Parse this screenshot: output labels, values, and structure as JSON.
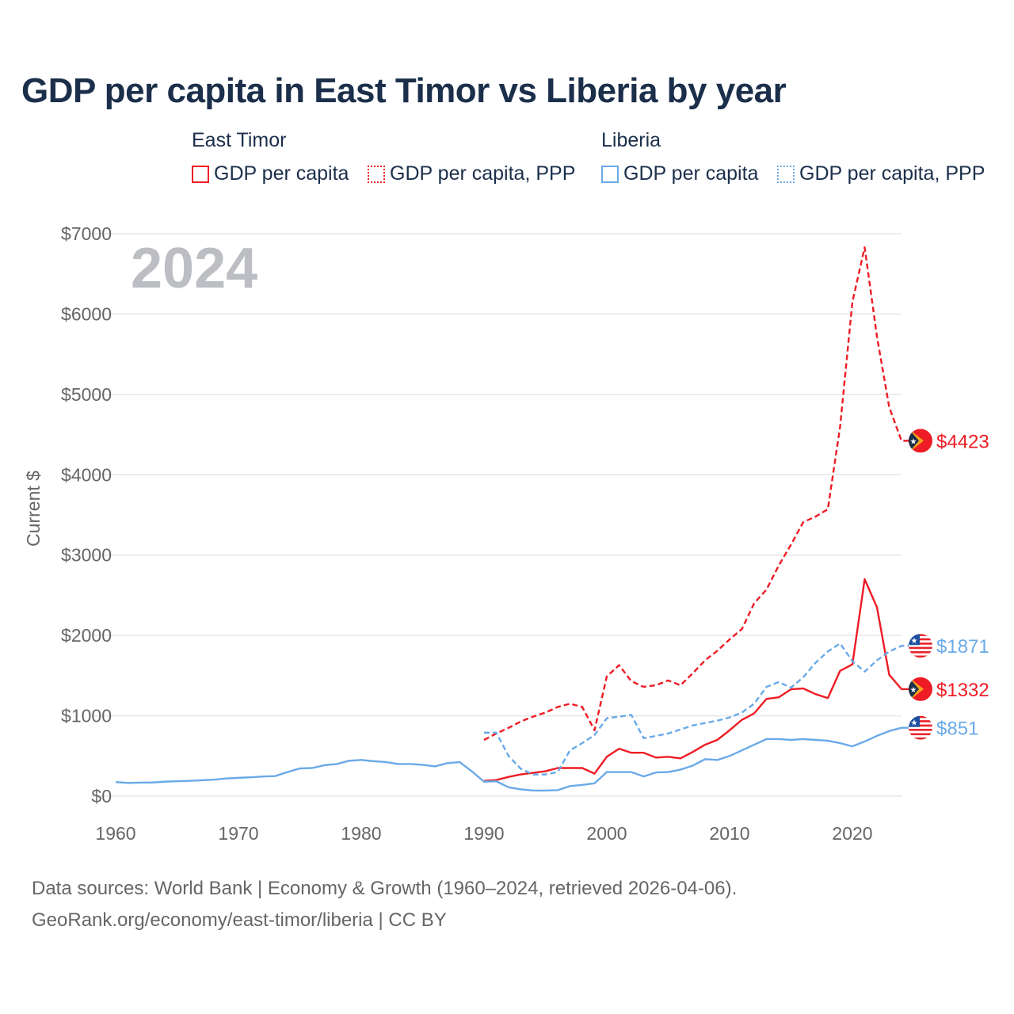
{
  "chart_data": {
    "type": "line",
    "title": "GDP per capita in East Timor vs Liberia by year",
    "ylabel": "Current $",
    "xlabel": "",
    "xlim": [
      1960,
      2024
    ],
    "ylim": [
      0,
      7000
    ],
    "xticks": [
      1960,
      1970,
      1980,
      1990,
      2000,
      2010,
      2020
    ],
    "yticks": [
      0,
      1000,
      2000,
      3000,
      4000,
      5000,
      6000,
      7000
    ],
    "ytick_labels": [
      "$0",
      "$1000",
      "$2000",
      "$3000",
      "$4000",
      "$5000",
      "$6000",
      "$7000"
    ],
    "grid": true,
    "year_label": "2024",
    "legend": {
      "placement": "top",
      "groups": [
        {
          "name": "East Timor",
          "items": [
            "GDP per capita",
            "GDP per capita, PPP"
          ]
        },
        {
          "name": "Liberia",
          "items": [
            "GDP per capita",
            "GDP per capita, PPP"
          ]
        }
      ]
    },
    "series": [
      {
        "name": "East Timor GDP per capita",
        "color": "#ee1c25",
        "dash": false,
        "end_label": "$1332",
        "flag": "east-timor",
        "x_start": 1990,
        "values": [
          190,
          200,
          240,
          270,
          290,
          310,
          350,
          350,
          350,
          280,
          490,
          590,
          540,
          540,
          480,
          490,
          470,
          550,
          640,
          700,
          820,
          950,
          1030,
          1210,
          1230,
          1330,
          1340,
          1270,
          1220,
          1560,
          1640,
          2700,
          2350,
          1510,
          1332
        ]
      },
      {
        "name": "East Timor GDP per capita, PPP",
        "color": "#ee1c25",
        "dash": true,
        "end_label": "$4423",
        "flag": "east-timor",
        "x_start": 1990,
        "values": [
          700,
          780,
          850,
          930,
          990,
          1040,
          1110,
          1150,
          1110,
          820,
          1490,
          1630,
          1430,
          1360,
          1380,
          1440,
          1380,
          1530,
          1690,
          1810,
          1950,
          2080,
          2400,
          2570,
          2870,
          3130,
          3410,
          3480,
          3570,
          4600,
          6150,
          6830,
          5720,
          4840,
          4423
        ]
      },
      {
        "name": "Liberia GDP per capita",
        "color": "#6aaae8",
        "dash": false,
        "end_label": "$851",
        "flag": "liberia",
        "x_start": 1960,
        "values": [
          175,
          165,
          168,
          170,
          180,
          185,
          190,
          198,
          205,
          220,
          228,
          235,
          245,
          250,
          300,
          345,
          350,
          385,
          400,
          440,
          450,
          435,
          425,
          400,
          400,
          390,
          370,
          410,
          425,
          310,
          180,
          185,
          110,
          85,
          70,
          70,
          75,
          125,
          140,
          160,
          300,
          300,
          300,
          245,
          295,
          300,
          330,
          380,
          460,
          450,
          500,
          570,
          640,
          710,
          710,
          700,
          710,
          700,
          690,
          660,
          620,
          680,
          750,
          810,
          851
        ]
      },
      {
        "name": "Liberia GDP per capita, PPP",
        "color": "#6aaae8",
        "dash": true,
        "end_label": "$1871",
        "flag": "liberia",
        "x_start": 1990,
        "values": [
          790,
          790,
          500,
          340,
          270,
          270,
          300,
          570,
          660,
          760,
          970,
          990,
          1010,
          720,
          750,
          780,
          830,
          880,
          910,
          940,
          980,
          1040,
          1150,
          1360,
          1420,
          1350,
          1480,
          1660,
          1800,
          1900,
          1680,
          1550,
          1690,
          1800,
          1871
        ]
      }
    ]
  },
  "legend": {
    "east_timor": "East Timor",
    "liberia": "Liberia",
    "et_gdp": "GDP per capita",
    "et_ppp": "GDP per capita, PPP",
    "lr_gdp": "GDP per capita",
    "lr_ppp": "GDP per capita, PPP"
  },
  "footer": {
    "line1": "Data sources: World Bank | Economy & Growth (1960–2024, retrieved 2026-04-06).",
    "line2": "GeoRank.org/economy/east-timor/liberia | CC BY"
  }
}
